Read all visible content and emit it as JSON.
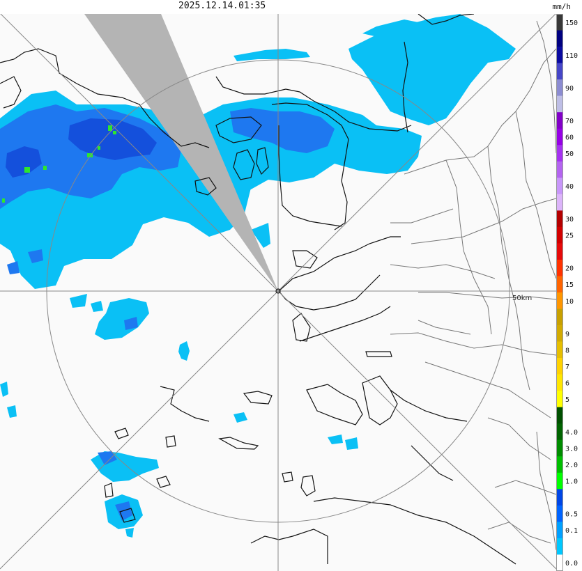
{
  "timestamp": "2025.12.14.01:35",
  "unit": "mm/h",
  "range_label": "50km",
  "legend": [
    {
      "label": "150",
      "color": "#383838"
    },
    {
      "label": "",
      "color": "#000080"
    },
    {
      "label": "110",
      "color": "#0a0aa0"
    },
    {
      "label": "",
      "color": "#4646c8"
    },
    {
      "label": "90",
      "color": "#8c8cd2"
    },
    {
      "label": "",
      "color": "#bebee6"
    },
    {
      "label": "70",
      "color": "#8200c8"
    },
    {
      "label": "60",
      "color": "#9600e6"
    },
    {
      "label": "50",
      "color": "#a532f0"
    },
    {
      "label": "",
      "color": "#b464f0"
    },
    {
      "label": "40",
      "color": "#c896fa"
    },
    {
      "label": "",
      "color": "#dcb4fa"
    },
    {
      "label": "30",
      "color": "#b40000"
    },
    {
      "label": "25",
      "color": "#d20000"
    },
    {
      "label": "",
      "color": "#e60a0a"
    },
    {
      "label": "20",
      "color": "#ff3200"
    },
    {
      "label": "15",
      "color": "#ff6400"
    },
    {
      "label": "10",
      "color": "#ff9600"
    },
    {
      "label": "",
      "color": "#c8a000"
    },
    {
      "label": "9",
      "color": "#d2aa00"
    },
    {
      "label": "8",
      "color": "#e6be00"
    },
    {
      "label": "7",
      "color": "#ffd200"
    },
    {
      "label": "6",
      "color": "#ffe600"
    },
    {
      "label": "5",
      "color": "#ffff00"
    },
    {
      "label": "",
      "color": "#005000"
    },
    {
      "label": "4.0",
      "color": "#006400"
    },
    {
      "label": "3.0",
      "color": "#008c00"
    },
    {
      "label": "2.0",
      "color": "#00be00"
    },
    {
      "label": "1.0",
      "color": "#00ff00"
    },
    {
      "label": "",
      "color": "#0046e6"
    },
    {
      "label": "0.5",
      "color": "#0064ff"
    },
    {
      "label": "0.1",
      "color": "#00a0ff"
    },
    {
      "label": "",
      "color": "#00c8ff"
    },
    {
      "label": "0.0",
      "color": "#ffffff"
    }
  ],
  "colors": {
    "background": "#fafafa",
    "light_rain": "#0ac0f5",
    "moderate_rain": "#1e78f0",
    "heavy_rain": "#1450dc",
    "intense_rain": "#2ee62e",
    "blocked_sector": "#b4b4b4",
    "coastline": "#111111",
    "boundaries": "#777777",
    "range_ring": "#888888"
  }
}
